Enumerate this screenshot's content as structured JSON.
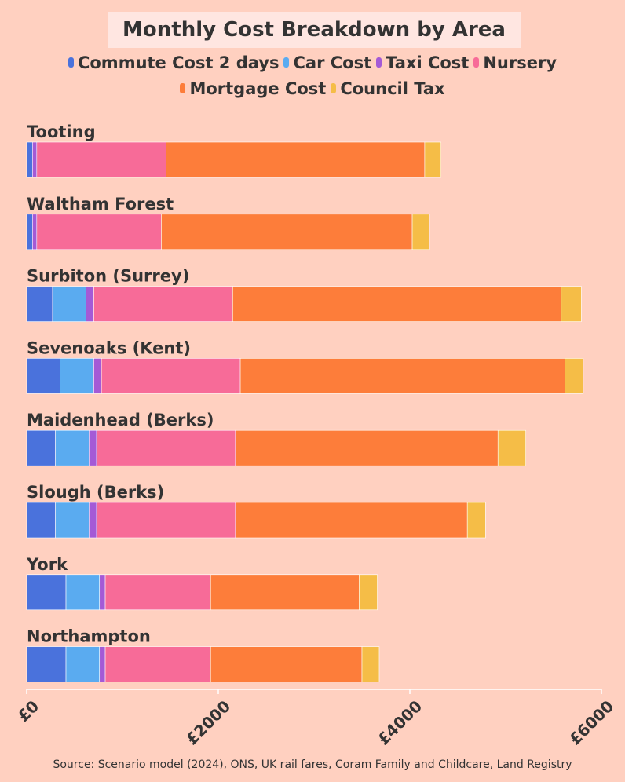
{
  "chart_data": {
    "type": "bar",
    "orientation": "horizontal",
    "stacked": true,
    "title": "Monthly Cost Breakdown by Area",
    "categories": [
      "Tooting",
      "Waltham Forest",
      "Surbiton (Surrey)",
      "Sevenoaks (Kent)",
      "Maidenhead (Berks)",
      "Slough (Berks)",
      "York",
      "Northampton"
    ],
    "series": [
      {
        "name": "Commute Cost 2 days",
        "color": "#4a72dc",
        "values": [
          60,
          60,
          270,
          350,
          300,
          300,
          410,
          410
        ]
      },
      {
        "name": "Car Cost",
        "color": "#5aabf0",
        "values": [
          0,
          0,
          350,
          350,
          350,
          350,
          350,
          350
        ]
      },
      {
        "name": "Taxi Cost",
        "color": "#a45ad6",
        "values": [
          45,
          45,
          80,
          80,
          80,
          80,
          60,
          60
        ]
      },
      {
        "name": "Nursery",
        "color": "#f76b98",
        "values": [
          1350,
          1300,
          1450,
          1450,
          1450,
          1450,
          1100,
          1100
        ]
      },
      {
        "name": "Mortgage Cost",
        "color": "#fd7d3a",
        "values": [
          2700,
          2620,
          3430,
          3390,
          2740,
          2420,
          1550,
          1580
        ]
      },
      {
        "name": "Council Tax",
        "color": "#f5bd47",
        "values": [
          170,
          180,
          210,
          190,
          290,
          190,
          190,
          180
        ]
      }
    ],
    "xlim": [
      0,
      6000
    ],
    "xticks": [
      {
        "value": 0,
        "label": "£0"
      },
      {
        "value": 2000,
        "label": "£2000"
      },
      {
        "value": 4000,
        "label": "£4000"
      },
      {
        "value": 6000,
        "label": "£6000"
      }
    ],
    "legend_position": "top",
    "grid": false
  },
  "source": "Source: Scenario model (2024), ONS, UK rail fares, Coram Family and Childcare, Land Registry"
}
